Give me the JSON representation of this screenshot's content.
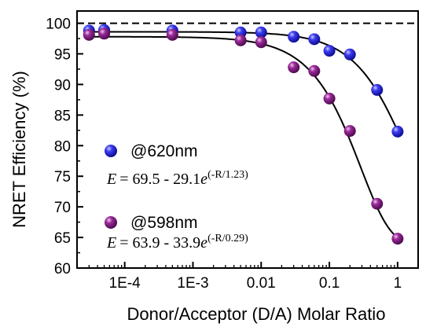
{
  "chart_data": {
    "type": "scatter",
    "x_scale": "log",
    "xlim": [
      2e-05,
      2
    ],
    "ylim": [
      60,
      102
    ],
    "xlabel": "Donor/Acceptor (D/A) Molar Ratio",
    "ylabel": "NRET Efficiency (%)",
    "x_ticks": [
      0.0001,
      0.001,
      0.01,
      0.1,
      1
    ],
    "x_tick_labels": [
      "1E-4",
      "1E-3",
      "0.01",
      "0.1",
      "1"
    ],
    "y_ticks": [
      60,
      65,
      70,
      75,
      80,
      85,
      90,
      95,
      100
    ],
    "y_tick_labels": [
      "60",
      "65",
      "70",
      "75",
      "80",
      "85",
      "90",
      "95",
      "100"
    ],
    "reference_line": {
      "y": 100,
      "style": "dashed"
    },
    "legend_placement": "lower-left",
    "series": [
      {
        "name": "@620nm",
        "color": "#1a1ad6",
        "equation": {
          "prefix": "= 69.5 - 29.1",
          "exponent": "(-R/1.23)"
        },
        "x": [
          3e-05,
          5e-05,
          0.0005,
          0.005,
          0.01,
          0.03,
          0.06,
          0.1,
          0.2,
          0.5,
          1
        ],
        "y": [
          98.8,
          98.9,
          98.8,
          98.5,
          98.5,
          97.8,
          97.4,
          95.5,
          94.9,
          89.1,
          82.3
        ],
        "fit": {
          "a": 69.5,
          "b": 29.1,
          "c": 1.23
        }
      },
      {
        "name": "@598nm",
        "color": "#7a1a7a",
        "equation": {
          "prefix": "= 63.9 - 33.9",
          "exponent": "(-R/0.29)"
        },
        "x": [
          3e-05,
          5e-05,
          0.0005,
          0.005,
          0.01,
          0.03,
          0.06,
          0.1,
          0.2,
          0.5,
          1
        ],
        "y": [
          98.1,
          98.3,
          98.1,
          97.2,
          96.9,
          92.8,
          92.2,
          87.7,
          82.4,
          70.5,
          64.8
        ],
        "fit": {
          "a": 63.9,
          "b": 33.9,
          "c": 0.29
        }
      }
    ]
  },
  "equation_variable": "E",
  "equation_base": "e"
}
